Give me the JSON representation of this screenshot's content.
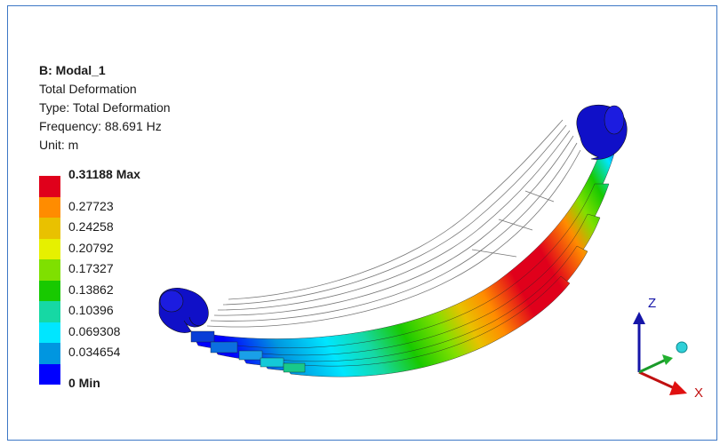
{
  "result": {
    "title": "B: Modal_1",
    "name": "Total Deformation",
    "type_line": "Type: Total Deformation",
    "frequency_line": "Frequency: 88.691 Hz",
    "unit_line": "Unit: m"
  },
  "legend": {
    "colors": [
      "#e0001b",
      "#ff8c00",
      "#e9c100",
      "#e6f000",
      "#7fe000",
      "#18c900",
      "#16d8a4",
      "#00e6ff",
      "#0096e0",
      "#0000ff"
    ],
    "labels": [
      "0.31188 Max",
      "0.27723",
      "0.24258",
      "0.20792",
      "0.17327",
      "0.13862",
      "0.10396",
      "0.069308",
      "0.034654",
      "0 Min"
    ]
  },
  "triad": {
    "z_label": "Z",
    "x_label": "X"
  }
}
